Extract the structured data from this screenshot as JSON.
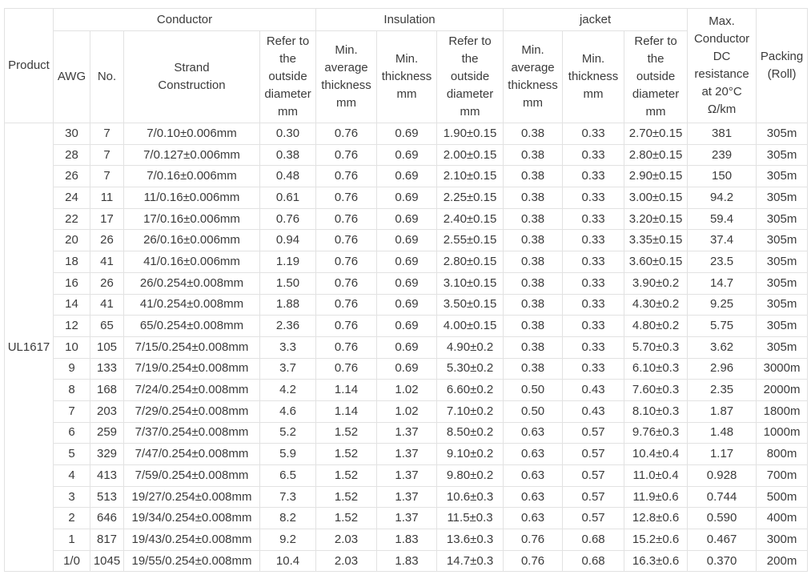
{
  "table": {
    "product": "UL1617",
    "headers": {
      "product": "Product",
      "conductor_group": "Conductor",
      "insulation_group": "Insulation",
      "jacket_group": "jacket",
      "awg": "AWG",
      "no": "No.",
      "strand_construction": "Strand Construction",
      "conductor_od": "Refer to the outside diameter mm",
      "insulation_min_avg": "Min. average thickness mm",
      "insulation_min": "Min. thickness mm",
      "insulation_od": "Refer to the outside diameter mm",
      "jacket_min_avg": "Min. average thickness mm",
      "jacket_min": "Min. thickness mm",
      "jacket_od": "Refer to the outside diameter mm",
      "resistance": "Max. Conductor DC resistance at 20°C Ω/km",
      "packing": "Packing (Roll)"
    },
    "rows": [
      [
        "30",
        "7",
        "7/0.10±0.006mm",
        "0.30",
        "0.76",
        "0.69",
        "1.90±0.15",
        "0.38",
        "0.33",
        "2.70±0.15",
        "381",
        "305m"
      ],
      [
        "28",
        "7",
        "7/0.127±0.006mm",
        "0.38",
        "0.76",
        "0.69",
        "2.00±0.15",
        "0.38",
        "0.33",
        "2.80±0.15",
        "239",
        "305m"
      ],
      [
        "26",
        "7",
        "7/0.16±0.006mm",
        "0.48",
        "0.76",
        "0.69",
        "2.10±0.15",
        "0.38",
        "0.33",
        "2.90±0.15",
        "150",
        "305m"
      ],
      [
        "24",
        "11",
        "11/0.16±0.006mm",
        "0.61",
        "0.76",
        "0.69",
        "2.25±0.15",
        "0.38",
        "0.33",
        "3.00±0.15",
        "94.2",
        "305m"
      ],
      [
        "22",
        "17",
        "17/0.16±0.006mm",
        "0.76",
        "0.76",
        "0.69",
        "2.40±0.15",
        "0.38",
        "0.33",
        "3.20±0.15",
        "59.4",
        "305m"
      ],
      [
        "20",
        "26",
        "26/0.16±0.006mm",
        "0.94",
        "0.76",
        "0.69",
        "2.55±0.15",
        "0.38",
        "0.33",
        "3.35±0.15",
        "37.4",
        "305m"
      ],
      [
        "18",
        "41",
        "41/0.16±0.006mm",
        "1.19",
        "0.76",
        "0.69",
        "2.80±0.15",
        "0.38",
        "0.33",
        "3.60±0.15",
        "23.5",
        "305m"
      ],
      [
        "16",
        "26",
        "26/0.254±0.008mm",
        "1.50",
        "0.76",
        "0.69",
        "3.10±0.15",
        "0.38",
        "0.33",
        "3.90±0.2",
        "14.7",
        "305m"
      ],
      [
        "14",
        "41",
        "41/0.254±0.008mm",
        "1.88",
        "0.76",
        "0.69",
        "3.50±0.15",
        "0.38",
        "0.33",
        "4.30±0.2",
        "9.25",
        "305m"
      ],
      [
        "12",
        "65",
        "65/0.254±0.008mm",
        "2.36",
        "0.76",
        "0.69",
        "4.00±0.15",
        "0.38",
        "0.33",
        "4.80±0.2",
        "5.75",
        "305m"
      ],
      [
        "10",
        "105",
        "7/15/0.254±0.008mm",
        "3.3",
        "0.76",
        "0.69",
        "4.90±0.2",
        "0.38",
        "0.33",
        "5.70±0.3",
        "3.62",
        "305m"
      ],
      [
        "9",
        "133",
        "7/19/0.254±0.008mm",
        "3.7",
        "0.76",
        "0.69",
        "5.30±0.2",
        "0.38",
        "0.33",
        "6.10±0.3",
        "2.96",
        "3000m"
      ],
      [
        "8",
        "168",
        "7/24/0.254±0.008mm",
        "4.2",
        "1.14",
        "1.02",
        "6.60±0.2",
        "0.50",
        "0.43",
        "7.60±0.3",
        "2.35",
        "2000m"
      ],
      [
        "7",
        "203",
        "7/29/0.254±0.008mm",
        "4.6",
        "1.14",
        "1.02",
        "7.10±0.2",
        "0.50",
        "0.43",
        "8.10±0.3",
        "1.87",
        "1800m"
      ],
      [
        "6",
        "259",
        "7/37/0.254±0.008mm",
        "5.2",
        "1.52",
        "1.37",
        "8.50±0.2",
        "0.63",
        "0.57",
        "9.76±0.3",
        "1.48",
        "1000m"
      ],
      [
        "5",
        "329",
        "7/47/0.254±0.008mm",
        "5.9",
        "1.52",
        "1.37",
        "9.10±0.2",
        "0.63",
        "0.57",
        "10.4±0.4",
        "1.17",
        "800m"
      ],
      [
        "4",
        "413",
        "7/59/0.254±0.008mm",
        "6.5",
        "1.52",
        "1.37",
        "9.80±0.2",
        "0.63",
        "0.57",
        "11.0±0.4",
        "0.928",
        "700m"
      ],
      [
        "3",
        "513",
        "19/27/0.254±0.008mm",
        "7.3",
        "1.52",
        "1.37",
        "10.6±0.3",
        "0.63",
        "0.57",
        "11.9±0.6",
        "0.744",
        "500m"
      ],
      [
        "2",
        "646",
        "19/34/0.254±0.008mm",
        "8.2",
        "1.52",
        "1.37",
        "11.5±0.3",
        "0.63",
        "0.57",
        "12.8±0.6",
        "0.590",
        "400m"
      ],
      [
        "1",
        "817",
        "19/43/0.254±0.008mm",
        "9.2",
        "2.03",
        "1.83",
        "13.6±0.3",
        "0.76",
        "0.68",
        "15.2±0.6",
        "0.467",
        "300m"
      ],
      [
        "1/0",
        "1045",
        "19/55/0.254±0.008mm",
        "10.4",
        "2.03",
        "1.83",
        "14.7±0.3",
        "0.76",
        "0.68",
        "16.3±0.6",
        "0.370",
        "200m"
      ]
    ]
  }
}
